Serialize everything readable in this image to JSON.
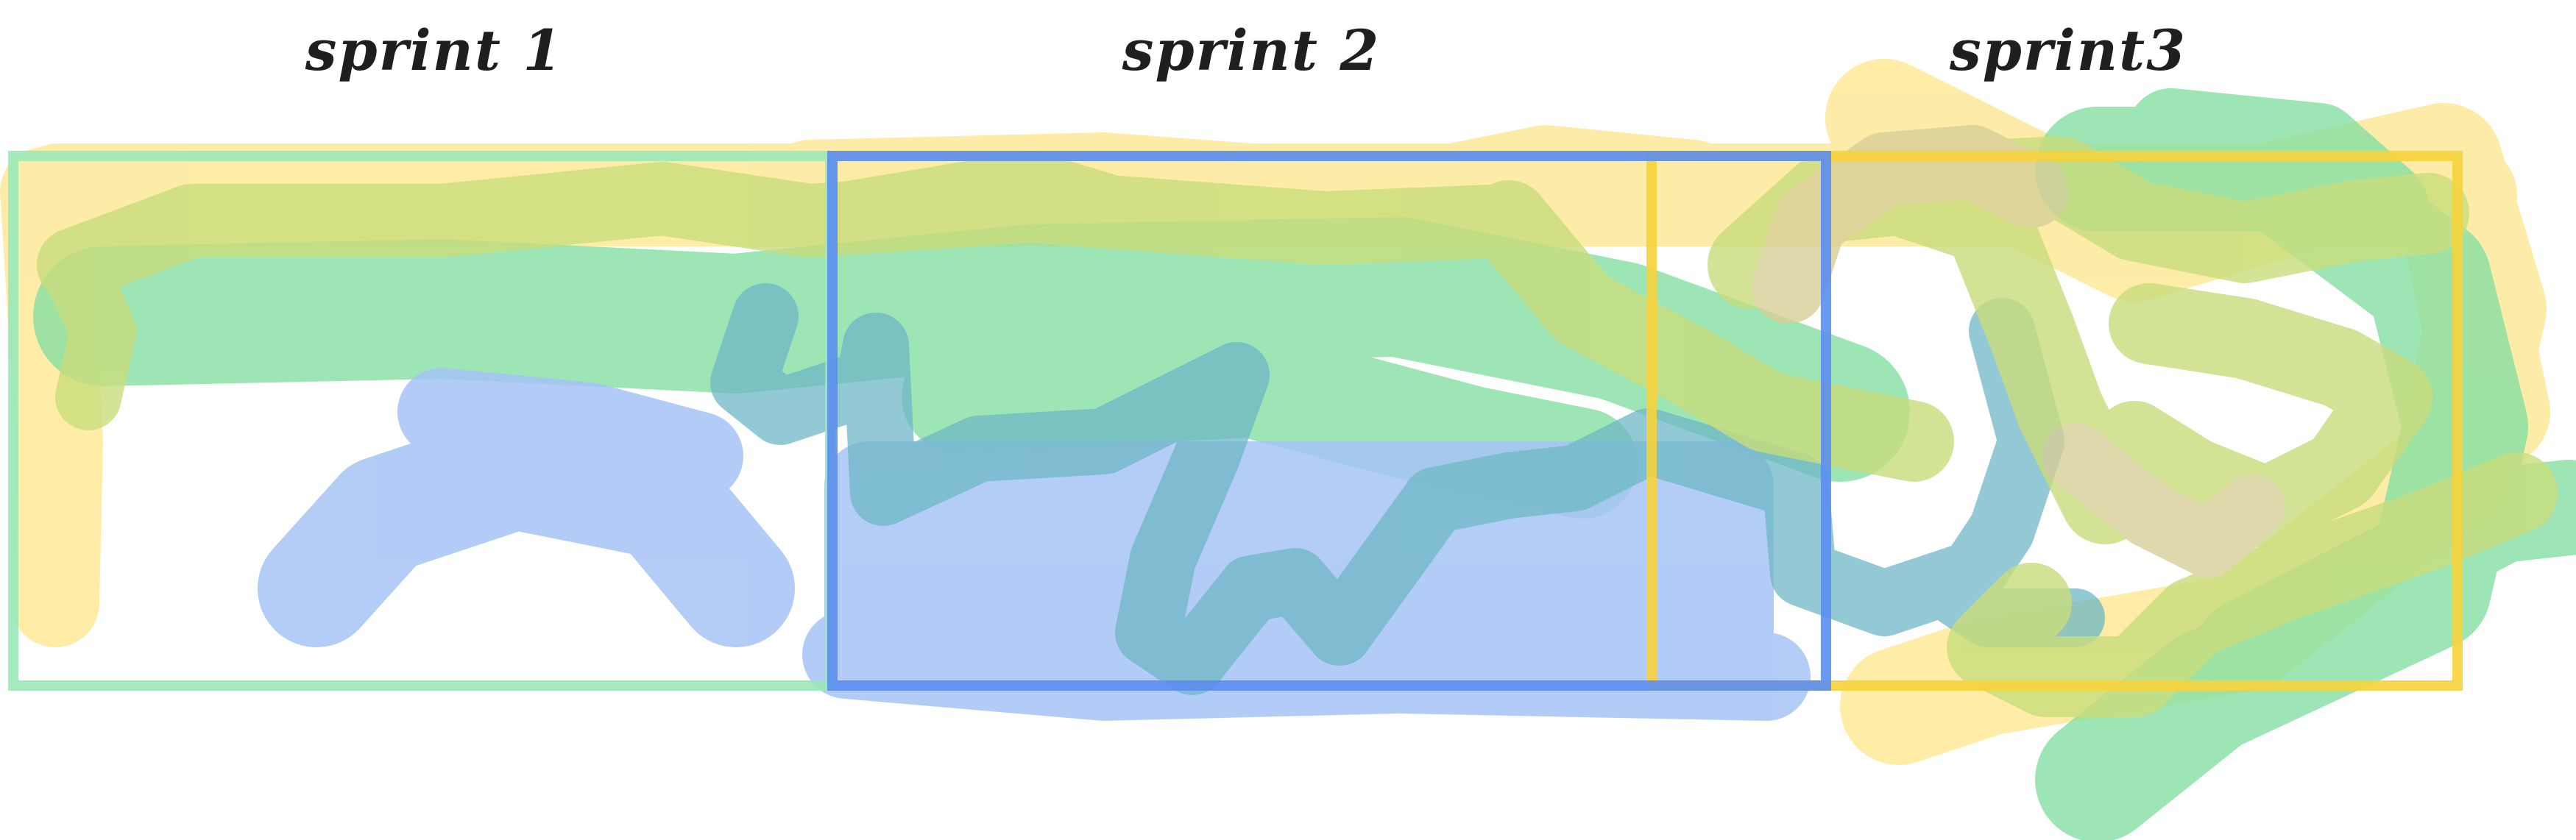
{
  "labels": {
    "sprint1": "sprint 1",
    "sprint2": "sprint 2",
    "sprint3": "sprint3"
  },
  "colors": {
    "background": "#ffffff",
    "yellow": "#fde68a",
    "green": "#86dfa3",
    "blue": "#a6c4f6",
    "sprint1_frame": "#9ae8b8",
    "sprint2_frame": "#5b8def",
    "sprint3_frame": "#f7d33c",
    "text": "#1f1f1f"
  }
}
